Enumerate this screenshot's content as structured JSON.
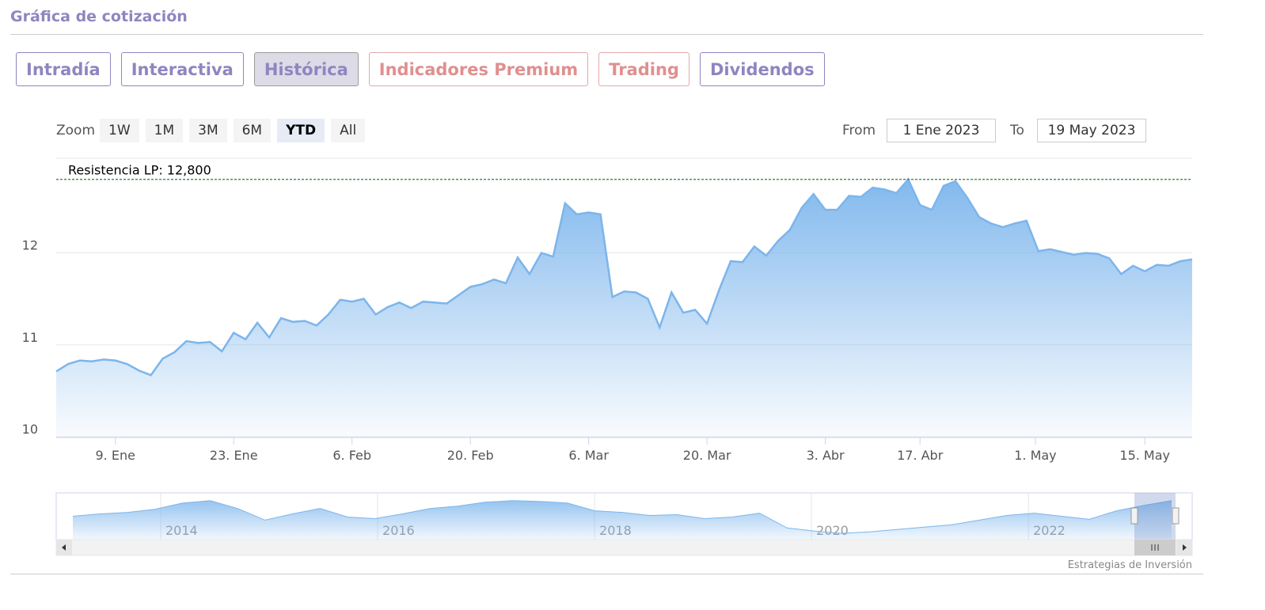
{
  "header": {
    "title": "Gráfica de cotización"
  },
  "tabs": {
    "items": [
      {
        "label": "Intradía",
        "color": "#8e86c0"
      },
      {
        "label": "Interactiva",
        "color": "#8e86c0"
      },
      {
        "label": "Histórica",
        "color": "#8e86c0"
      },
      {
        "label": "Indicadores Premium",
        "color": "#e08f8f"
      },
      {
        "label": "Trading",
        "color": "#e08f8f"
      },
      {
        "label": "Dividendos",
        "color": "#8e86c0"
      }
    ],
    "active": 2
  },
  "range_selector": {
    "zoom_label": "Zoom",
    "buttons": [
      "1W",
      "1M",
      "3M",
      "6M",
      "YTD",
      "All"
    ],
    "active": 4,
    "from_label": "From",
    "from": "1 Ene 2023",
    "to_label": "To",
    "to": "19 May 2023"
  },
  "credit": "Estrategias de Inversión",
  "chart_data": {
    "type": "area",
    "color": "#7cb5ec",
    "x": [
      "2023-01-02",
      "2023-01-03",
      "2023-01-04",
      "2023-01-05",
      "2023-01-06",
      "2023-01-09",
      "2023-01-10",
      "2023-01-11",
      "2023-01-12",
      "2023-01-13",
      "2023-01-16",
      "2023-01-17",
      "2023-01-18",
      "2023-01-19",
      "2023-01-20",
      "2023-01-23",
      "2023-01-24",
      "2023-01-25",
      "2023-01-26",
      "2023-01-27",
      "2023-01-30",
      "2023-01-31",
      "2023-02-01",
      "2023-02-02",
      "2023-02-03",
      "2023-02-06",
      "2023-02-07",
      "2023-02-08",
      "2023-02-09",
      "2023-02-10",
      "2023-02-13",
      "2023-02-14",
      "2023-02-15",
      "2023-02-16",
      "2023-02-17",
      "2023-02-20",
      "2023-02-21",
      "2023-02-22",
      "2023-02-23",
      "2023-02-24",
      "2023-02-27",
      "2023-02-28",
      "2023-03-01",
      "2023-03-02",
      "2023-03-03",
      "2023-03-06",
      "2023-03-07",
      "2023-03-08",
      "2023-03-09",
      "2023-03-10",
      "2023-03-13",
      "2023-03-14",
      "2023-03-15",
      "2023-03-16",
      "2023-03-17",
      "2023-03-20",
      "2023-03-21",
      "2023-03-22",
      "2023-03-23",
      "2023-03-24",
      "2023-03-27",
      "2023-03-28",
      "2023-03-29",
      "2023-03-30",
      "2023-03-31",
      "2023-04-03",
      "2023-04-04",
      "2023-04-05",
      "2023-04-06",
      "2023-04-11",
      "2023-04-12",
      "2023-04-13",
      "2023-04-14",
      "2023-04-17",
      "2023-04-18",
      "2023-04-19",
      "2023-04-20",
      "2023-04-21",
      "2023-04-24",
      "2023-04-25",
      "2023-04-26",
      "2023-04-27",
      "2023-04-28",
      "2023-05-02",
      "2023-05-03",
      "2023-05-04",
      "2023-05-05",
      "2023-05-08",
      "2023-05-09",
      "2023-05-10",
      "2023-05-11",
      "2023-05-12",
      "2023-05-15",
      "2023-05-16",
      "2023-05-17",
      "2023-05-18",
      "2023-05-19"
    ],
    "values": [
      10.71,
      10.79,
      10.83,
      10.82,
      10.84,
      10.83,
      10.79,
      10.72,
      10.67,
      10.85,
      10.92,
      11.04,
      11.02,
      11.03,
      10.93,
      11.13,
      11.06,
      11.24,
      11.08,
      11.29,
      11.25,
      11.26,
      11.21,
      11.33,
      11.49,
      11.47,
      11.5,
      11.33,
      11.41,
      11.46,
      11.4,
      11.47,
      11.46,
      11.45,
      11.54,
      11.63,
      11.66,
      11.71,
      11.67,
      11.95,
      11.77,
      12.0,
      11.96,
      12.54,
      12.42,
      12.44,
      12.42,
      11.52,
      11.58,
      11.57,
      11.5,
      11.19,
      11.57,
      11.35,
      11.38,
      11.23,
      11.59,
      11.91,
      11.9,
      12.07,
      11.97,
      12.13,
      12.25,
      12.49,
      12.64,
      12.47,
      12.47,
      12.62,
      12.61,
      12.71,
      12.69,
      12.65,
      12.8,
      12.52,
      12.47,
      12.73,
      12.78,
      12.6,
      12.39,
      12.32,
      12.28,
      12.32,
      12.35,
      12.02,
      12.04,
      12.01,
      11.98,
      12.0,
      11.99,
      11.94,
      11.77,
      11.86,
      11.8,
      11.87,
      11.86,
      11.91,
      11.93
    ],
    "ylim": [
      10,
      13.03
    ],
    "yticks": [
      10,
      11,
      12
    ],
    "grid": true,
    "xticks": [
      {
        "value": "2023-01-09",
        "label": "9. Ene"
      },
      {
        "value": "2023-01-23",
        "label": "23. Ene"
      },
      {
        "value": "2023-02-06",
        "label": "6. Feb"
      },
      {
        "value": "2023-02-20",
        "label": "20. Feb"
      },
      {
        "value": "2023-03-06",
        "label": "6. Mar"
      },
      {
        "value": "2023-03-20",
        "label": "20. Mar"
      },
      {
        "value": "2023-04-03",
        "label": "3. Abr"
      },
      {
        "value": "2023-04-17",
        "label": "17. Abr"
      },
      {
        "value": "2023-05-01",
        "label": "1. May"
      },
      {
        "value": "2023-05-15",
        "label": "15. May"
      }
    ],
    "plot_lines": [
      {
        "value": 12.8,
        "label": "Resistencia LP: 12,800",
        "color": "#2e7d32"
      }
    ],
    "navigator": {
      "values": [
        10.5,
        10.8,
        11.0,
        11.4,
        12.2,
        12.5,
        11.5,
        10.0,
        10.8,
        11.5,
        10.4,
        10.2,
        10.8,
        11.5,
        11.8,
        12.3,
        12.5,
        12.4,
        12.2,
        11.2,
        11.0,
        10.6,
        10.7,
        10.2,
        10.4,
        10.9,
        9.0,
        8.6,
        8.3,
        8.5,
        8.8,
        9.1,
        9.4,
        10.0,
        10.6,
        10.9,
        10.5,
        10.1,
        11.2,
        11.9,
        12.5
      ],
      "xlim": [
        2013.19,
        2023.32
      ],
      "xticks": [
        2014,
        2016,
        2018,
        2020,
        2022
      ],
      "ylim": [
        7.5,
        13.5
      ]
    }
  }
}
